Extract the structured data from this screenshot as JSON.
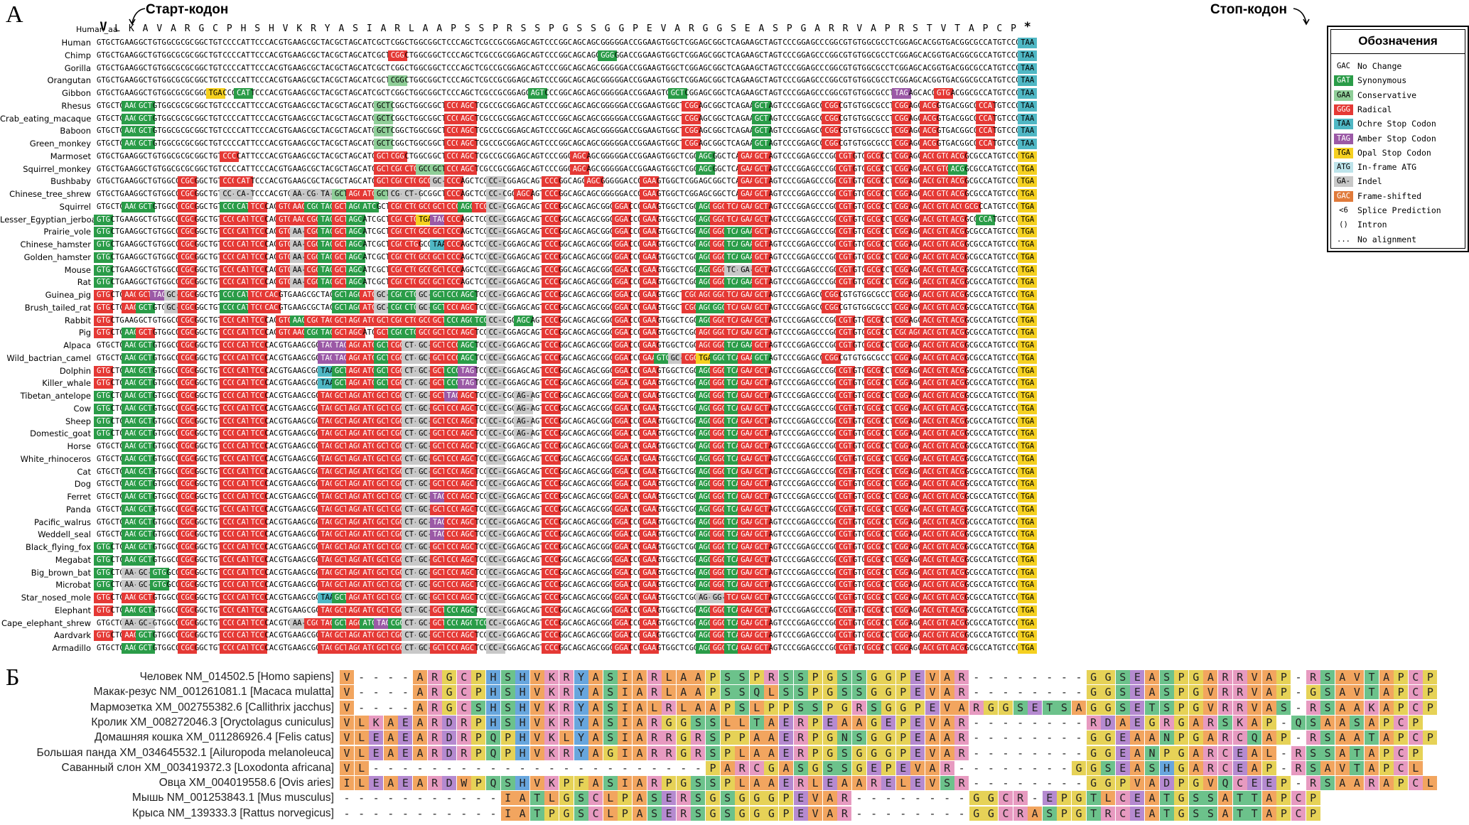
{
  "panelA": {
    "letter": "А",
    "start_label": "Старт-кодон",
    "stop_label": "Стоп-кодон",
    "human_aa_label": "Human_aa",
    "human_aa": [
      "V",
      "L",
      "K",
      "A",
      "V",
      "A",
      "R",
      "G",
      "C",
      "P",
      "H",
      "S",
      "H",
      "V",
      "K",
      "R",
      "Y",
      "A",
      "S",
      "I",
      "A",
      "R",
      "L",
      "A",
      "A",
      "P",
      "S",
      "S",
      "P",
      "R",
      "S",
      "S",
      "P",
      "G",
      "S",
      "S",
      "G",
      "G",
      "P",
      "E",
      "V",
      "A",
      "R",
      "G",
      "G",
      "S",
      "E",
      "A",
      "S",
      "P",
      "G",
      "A",
      "R",
      "R",
      "V",
      "A",
      "P",
      "R",
      "S",
      "T",
      "V",
      "T",
      "A",
      "P",
      "C",
      "P",
      "*"
    ],
    "human_codons": [
      "GTG",
      "CTG",
      "AAG",
      "GCT",
      "GTG",
      "GCG",
      "CGC",
      "GGC",
      "TGT",
      "CCC",
      "CAT",
      "TCC",
      "CAC",
      "GTG",
      "AAG",
      "CGC",
      "TAC",
      "GCT",
      "AGC",
      "ATC",
      "GCT",
      "CGG",
      "CTG",
      "GCG",
      "GCT",
      "CCC",
      "AGC",
      "TCG",
      "CCG",
      "CGG",
      "AGC",
      "AGT",
      "CCC",
      "GGC",
      "AGC",
      "AGC",
      "GGG",
      "GGA",
      "CCG",
      "GAA",
      "GTG",
      "GCT",
      "CGG",
      "AGC",
      "GGC",
      "TCA",
      "GAA",
      "GCT",
      "AGT",
      "CCC",
      "GGA",
      "GCC",
      "CGG",
      "CGT",
      "GTG",
      "GCG",
      "CCT",
      "CGG",
      "AGC",
      "ACG",
      "GTG",
      "ACG",
      "GCG",
      "CCA",
      "TGT",
      "CCC",
      "TAA"
    ],
    "species": [
      {
        "name": "Human",
        "m": ""
      },
      {
        "name": "Chimp",
        "m": "21r36s"
      },
      {
        "name": "Gorilla",
        "m": ""
      },
      {
        "name": "Orangutan",
        "m": "21c"
      },
      {
        "name": "Gibbon",
        "m": "8y10s31s41s57u60r"
      },
      {
        "name": "Rhesus",
        "m": "2s3s20c25r26r42r47s52r57r59r63r"
      },
      {
        "name": "Crab_eating_macaque",
        "m": "2s3s20c25r26r42r47s52r57r59r63r"
      },
      {
        "name": "Baboon",
        "m": "2s3s20c25r26r42r47s52r57r59r63r"
      },
      {
        "name": "Green_monkey",
        "m": "2s3s20c25r26r42r47s52r57r59r63r"
      },
      {
        "name": "Marmoset",
        "m": "9r20r21r25r26r34r43s46r47r53r55r57r59r60r61r"
      },
      {
        "name": "Squirrel_monkey",
        "m": "20r21r22r23c24c25r26r34r43s46r47r53r55r57r59r60r61s"
      },
      {
        "name": "Bushbaby",
        "m": "6r9r10r20r21r22r23r24i25r28i32r35r39r46r47r53r55r57r59r60r61r"
      },
      {
        "name": "Chinese_tree_shrew",
        "m": "6r9i10i14i15i16i17c18r19r20c21i22i25r28i30r32r39r46r47r53r55r57r59r60r61r"
      },
      {
        "name": "Squirrel",
        "m": "2s3s6r9s10s11r13r14r15s16s17r18s19s21r22r23r24r25r26s27r28i32r37r39r43s44r45r46r47r53r55r57r59r60r61r62r"
      },
      {
        "name": "Lesser_Egyptian_jerboa",
        "m": "0s6r9r10r11r13r14r15r16s17r18s21r22r23y24u25r28i32r37r39r43s44r45r46r47r53r55r57r59r60r61r63s"
      },
      {
        "name": "Prairie_vole",
        "m": "0s6r9r10r11r13r14i15r16s17r18s21r22r23r24r25r28i32r37r39r43s44r45s46s47r53r55r57r59r60r61r"
      },
      {
        "name": "Chinese_hamster",
        "m": "0s6r9r10r11r13r14i15r16s17r18s21r22r24o25r28i32r37r39r43s44r45s46s47r53r55r57r59r60r61r"
      },
      {
        "name": "Golden_hamster",
        "m": "0s6r9r10r11r13r14i15r16s17r18s21r22r23r24r25r28i32r37r39r43s44r45s46s47r53r55r57r59r60r61r"
      },
      {
        "name": "Mouse",
        "m": "0s6r9r10r11r13r14i15r16s17r18s21r22r23r24r25r28i32r37r39r43s44r45i46i47r53r55r57r59r60r61r"
      },
      {
        "name": "Rat",
        "m": "0s6r9r10r11r13r14i15r16s17r18s21r22r23r24r25r28i32r37r39r43s44r45s46s47r53r55r57r59r60r61r"
      },
      {
        "name": "Guinea_pig",
        "m": "0r2r3r4u5i6r9s10s11r12r17s18s19r20i21s22s23i24s25s26s28i32r37r39r42r43r44r45r46r47r52r57r59r60r61r"
      },
      {
        "name": "Brush_tailed_rat",
        "m": "0r2r3s5i6r9s10s11r12r17s18s19r20i21s22s23i24s25r26r28i32r37r39r42r43s44s45r46r47r52r57r59r60r61r"
      },
      {
        "name": "Rabbit",
        "m": "0r6r9r10r11r13r14s15r16r17r18r19r20r21r22r23r24r25s26s27s28i30s32r37r39r43s44r45r46r47r53r55r57r59r60r61r"
      },
      {
        "name": "Pig",
        "m": "0r2s3r6r9r10r11r13r14r15s16s17r18r20r21s22s23r24r25r26r28i32r37r39r43r44r45r46r47r53r55r57r58r59r60r61r"
      },
      {
        "name": "Alpaca",
        "m": "2s3s6r9r10r11r16u17u18r19r20s21r22i23i24r25r26s28i32r37r39r43r44r45s46s47r53r55r57r59r60r61r"
      },
      {
        "name": "Wild_bactrian_camel",
        "m": "2s3s6r9r10r11r16u17u18r19r20s21r22i23i24r25r26s28i32r37r39r40s41i42r43y44s45s46r47s52r57r59r60r61r"
      },
      {
        "name": "Dolphin",
        "m": "0r2s3s6r9r10r11r16o17s18r19r20s21r22i23i24r25s26u28i32r37r39r43s44r45s46r47r53r55r57r59r60r61r"
      },
      {
        "name": "Killer_whale",
        "m": "0r2s3s6r9r10r11r16o17s18r19r20s21r22i23i24r25s26u28i32r37r39r43s44r45s46r47r53r55r57r59r60r61r"
      },
      {
        "name": "Tibetan_antelope",
        "m": "0s2s3s6r9r10r11r16r17r18r19r20r21r22i23i24r25u26r28i30i32r37r39r43s44r45s46r47r53r55r57r59r60r61r"
      },
      {
        "name": "Cow",
        "m": "0s2s3s6r9r10r11r16r17r18r19r20r21r22i23i24r25r26r28i30i32r37r39r43s44r45s46r47r53r55r57r59r60r61r"
      },
      {
        "name": "Sheep",
        "m": "0s2s3s6r9r10r11r16r17r18r19r20r21r22i23i24r25r26r28i30i32r37r39r43s44r45s46r47r53r55r57r59r60r61r"
      },
      {
        "name": "Domestic_goat",
        "m": "0s2s3s6r9r10r11r16r17r18r19r20r21r22i23i24r25r26r28i30i32r37r39r43s44r45s46r47r53r55r57r59r60r61r"
      },
      {
        "name": "Horse",
        "m": "2s3s6r9r10r11r16r17r18r19r20r21r22i23i24r25r26r28i32r37r39r43s44r45s46r47r53r55r57r59r60r61r"
      },
      {
        "name": "White_rhinoceros",
        "m": "2s3s6r9r10r11r16r17r18r19r20r21r22i23i24r25r26r28i32r37r39r43s44r45s46r47r53r55r57r59r60r61r"
      },
      {
        "name": "Cat",
        "m": "2s3s6r9r10r11r16r17r18r19r20r21r22i23i24r25r26r28i32r37r39r43s44r45s46r47r53r55r57r59r60r61r"
      },
      {
        "name": "Dog",
        "m": "2s3s6r9r10r11r16r17r18r19r20r21r22i23i24r25r26r28i32r37r39r43s44r45s46r47r53r55r57r59r60r61r"
      },
      {
        "name": "Ferret",
        "m": "2s3s6r9r10r11r16r17r18r19r20r21r22i23i24u25r26r28i32r37r39r43s44r45s46r47r53r55r57r59r60r61r"
      },
      {
        "name": "Panda",
        "m": "2s3s6r9r10r11r16r17r18r19r20r21r22i23i24r25r26r28i32r37r39r43s44r45s46r47r53r55r57r59r60r61r"
      },
      {
        "name": "Pacific_walrus",
        "m": "2s3s6r9r10r11r16r17r18r19r20r21r22i23i24u25r26r28i32r37r39r43s44r45s46r47r53r55r57r59r60r61r"
      },
      {
        "name": "Weddell_seal",
        "m": "2s3s6r9r10r11r16r17r18r19r20r21r22i23i24u25r26r28i32r37r39r43s44r45s46r47r53r55r57r59r60r61r"
      },
      {
        "name": "Black_flying_fox",
        "m": "0s2s3s6r9r10r11r16r17r18r19r20r21r22i23i24r25r26r28i32r37r39r43s44r45s46r47r53r55r57r59r60r61r"
      },
      {
        "name": "Megabat",
        "m": "0s2s3s6r9r10r11r16r17r18r19r20r21r22i23i24r25r26r28i32r37r39r43s44r45s46r47r53r55r57r59r60r61r"
      },
      {
        "name": "Big_brown_bat",
        "m": "0s2i3i4s6r9r10r11r16r17r18r19r20r21r22i23i24r25r26r28i32r37r39r43s44r45s46r47r53r55r57r59r60r61r"
      },
      {
        "name": "Microbat",
        "m": "0s2i3i4s6r9r10r11r16r17r18r19r20r21r22i23i24r25r26r28i32r37r39r43s44r45s46r47r53r55r57r59r60r61r"
      },
      {
        "name": "Star_nosed_mole",
        "m": "0r2r3r6r9r10r11r16o17s18r19r20r21r22i23i24r25r26r28i32r37r39r43i44i45r46r47r53r55r57r59r60r61r"
      },
      {
        "name": "Elephant",
        "m": "0r2s3s6r9r10r11r16r17r18r19r20r21r22i23i24r25s26s28i32r37r39r43s44r45s46r47r53r55r57r59r60r61r"
      },
      {
        "name": "Cape_elephant_shrew",
        "m": "2i3i6r9r10r11r14i15r16r17s18r19s20u21s22i23i24r25s26s27s28i32r37r39r43s44r45s46r47r53r55r57r59r60r61r"
      },
      {
        "name": "Aardvark",
        "m": "0r2r3s6r9r10r11r16r17r18r19r20r21r22i23i24r25r26r28i32r37r39r43s44r45s46r47r53r55r57r59r60r61r"
      },
      {
        "name": "Armadillo",
        "m": "2s3s6r9r10r11r16r17r18r19r20r21r22i23i24r25r26r28i32r37r39r43s44r45s46r47r53r55r57r59r60r61r"
      }
    ],
    "stop_overrides": {
      "Human": "TAA",
      "Chimp": "TAA",
      "Gorilla": "TAA",
      "Orangutan": "TAA",
      "Gibbon": "TAA",
      "Rhesus": "TAA",
      "Crab_eating_macaque": "TAA",
      "Baboon": "TAA",
      "Green_monkey": "TAA"
    },
    "default_stop": "TGA"
  },
  "legend": {
    "title": "Обозначения",
    "items": [
      {
        "code": "GAC",
        "label": "No Change",
        "cls": ""
      },
      {
        "code": "GAT",
        "label": "Synonymous",
        "cls": "c-syn"
      },
      {
        "code": "GAA",
        "label": "Conservative",
        "cls": "c-cons"
      },
      {
        "code": "GGG",
        "label": "Radical",
        "cls": "c-rad"
      },
      {
        "code": "TAA",
        "label": "Ochre Stop Codon",
        "cls": "c-ochre"
      },
      {
        "code": "TAG",
        "label": "Amber Stop Codon",
        "cls": "c-amber"
      },
      {
        "code": "TGA",
        "label": "Opal Stop Codon",
        "cls": "c-opal"
      },
      {
        "code": "ATG",
        "label": "In-frame ATG",
        "cls": "c-start"
      },
      {
        "code": "GA-",
        "label": "Indel",
        "cls": "c-indel"
      },
      {
        "code": "GAC",
        "label": "Frame-shifted",
        "cls": "c-frame"
      },
      {
        "code": "<6",
        "label": "Splice Prediction",
        "cls": ""
      },
      {
        "code": "()",
        "label": "Intron",
        "cls": ""
      },
      {
        "code": "...",
        "label": "No alignment",
        "cls": ""
      }
    ]
  },
  "panelB": {
    "letter": "Б",
    "rows": [
      {
        "name": "Человек NM_014502.5 [Homo sapiens]",
        "seq": "V----ARGCPHSHVKRYASIARLAAPSSPRSSPGSSGGPEVAR--------GGSEASPGARRVAP-RSAVTAPCP"
      },
      {
        "name": "Макак-резус NM_001261081.1 [Macaca mulatta]",
        "seq": "V----ARGCPHSHVKRYASIARLAAPSSQLSSPGSSGGPEVAR--------GGSEASPGVRRVAP-GSAVTAPCP"
      },
      {
        "name": "Мармозетка XM_002755382.6 [Callithrix jacchus]",
        "seq": "V----ARGCSHSHVKRYASIALRLAAPSLPPSSPGRSGGPEVARGGSETSAGGSETSPGVRRVAS-RSAAKAPCP"
      },
      {
        "name": "Кролик XM_008272046.3 [Oryctolagus cuniculus]",
        "seq": "VLKAEARDRPHSHVKRYASIARGGSSLLTAERPEAAGEPEVAR--------RDAEGRGARSKAP-QSAASAPCP"
      },
      {
        "name": "Домашняя кошка XM_011286926.4 [Felis catus]",
        "seq": "VLEAEARDRPQPHVKLYASIARRGRSPPAAERPGNSGGPEAAR--------GGEAANPGARCQAP-RSAATAPCP"
      },
      {
        "name": "Большая панда XM_034645532.1 [Ailuropoda melanoleuca]",
        "seq": "VLEAEARDRPQPHVKRYAGIARRGRSPLAAERPGSGGGPEVAR--------GGEANPGARCEAL-RSSATAPCP"
      },
      {
        "name": "Саванный слон XM_003419372.3 [Loxodonta africana]",
        "seq": "VL-----------------------PARCGASGSSGEPEVAR--------GGSEASHGARCEAP-RSAVTAPCL"
      },
      {
        "name": "Овца XM_004019558.6 [Ovis aries]",
        "seq": "ILEAEARDWPQSHVKPFASIARPGSSPLAAERLEAARELEVSR--------GGPVADPGVQCEEP-RSAARAPCL"
      },
      {
        "name": "Мышь NM_001253843.1 [Mus musculus]",
        "seq": "-----------IATLGSCLPASERSGSGGGPEVAR--------GGCR-EPGTLCEATGSSATTAPCP"
      },
      {
        "name": "Крыса NM_139333.3 [Rattus norvegicus]",
        "seq": "-----------IATPGSCLPASERSGSGGGPEVAR--------GGCRASPGTRCEATGSSATTAPCP"
      }
    ],
    "colors": {
      "A": "aa-o",
      "V": "aa-o",
      "L": "aa-o",
      "I": "aa-o",
      "M": "aa-o",
      "F": "aa-y",
      "W": "aa-o",
      "P": "aa-y",
      "G": "aa-y",
      "S": "aa-g",
      "T": "aa-g",
      "Q": "aa-g",
      "N": "aa-g",
      "Y": "aa-b",
      "C": "aa-p",
      "H": "aa-b",
      "R": "aa-p",
      "K": "aa-p",
      "D": "aa-pu",
      "E": "aa-pu"
    }
  }
}
